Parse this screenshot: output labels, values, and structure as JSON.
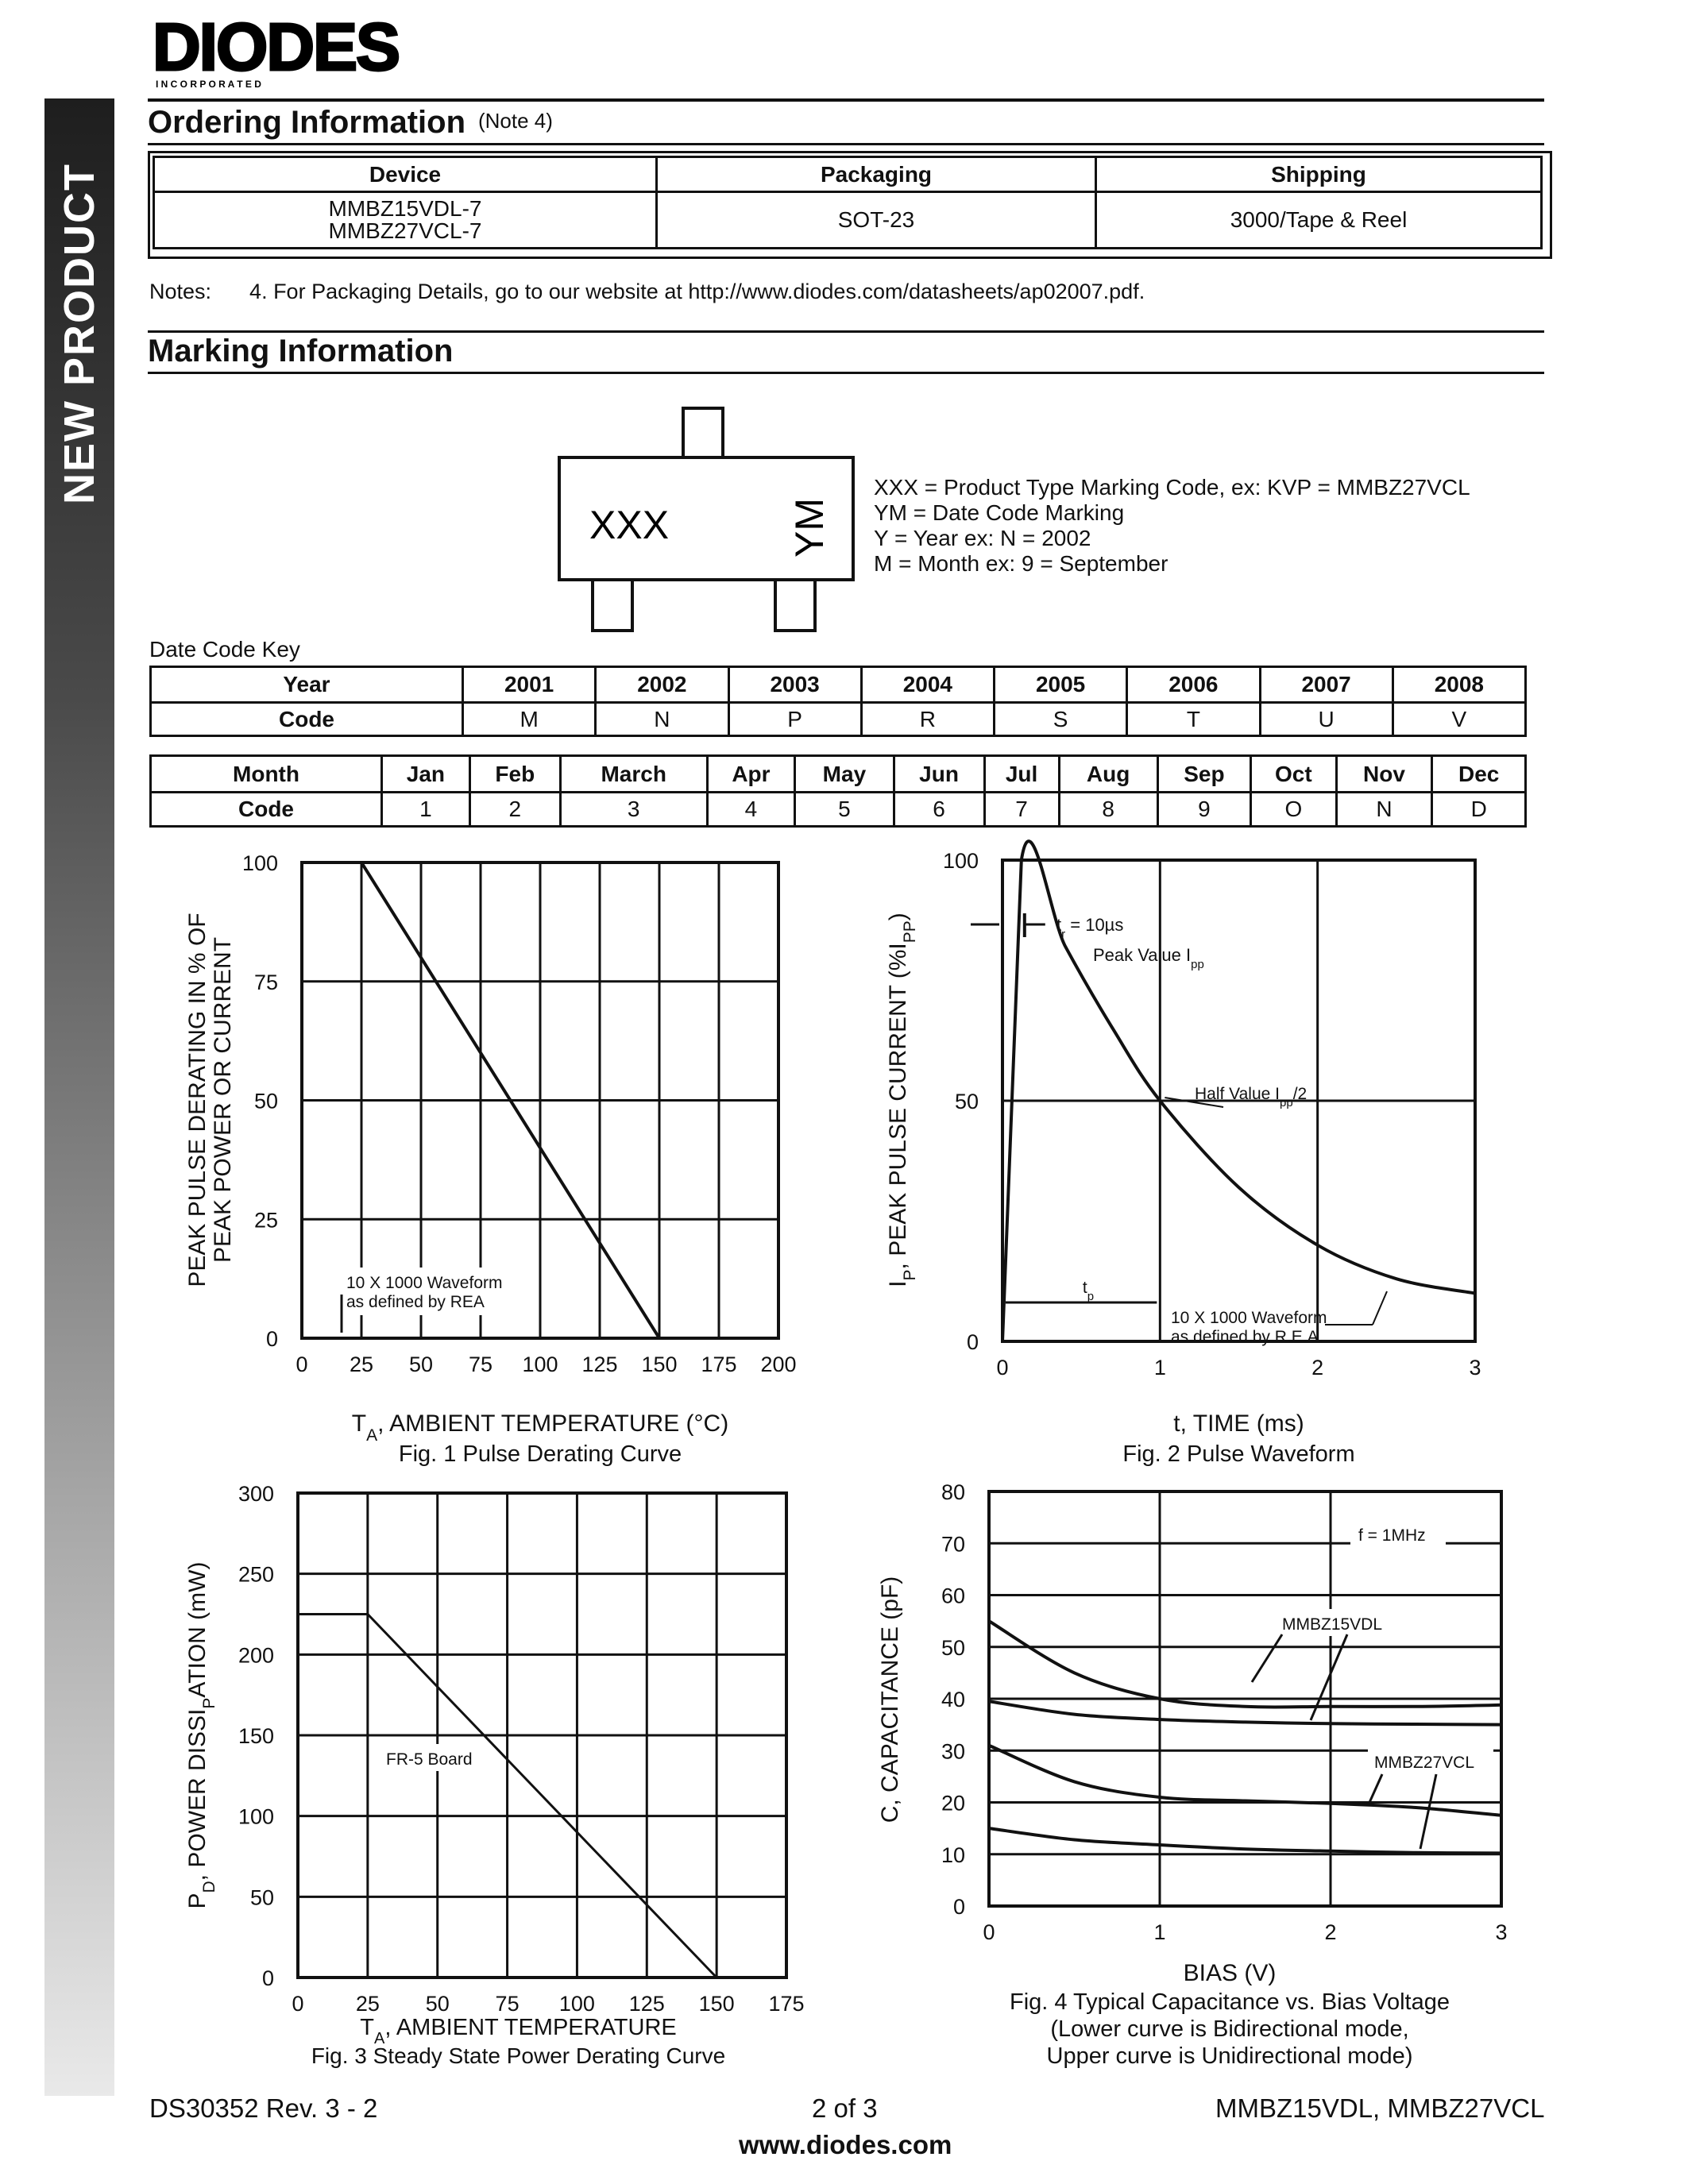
{
  "header": {
    "logo_text": "DIODES",
    "logo_subtext": "I N C O R P O R A T E D",
    "side_banner": "NEW PRODUCT"
  },
  "ordering": {
    "title": "Ordering Information",
    "note_ref": "(Note 4)",
    "columns": [
      "Device",
      "Packaging",
      "Shipping"
    ],
    "devices": [
      "MMBZ15VDL-7",
      "MMBZ27VCL-7"
    ],
    "packaging": "SOT-23",
    "shipping": "3000/Tape & Reel",
    "notes_label": "Notes:",
    "note_4": "4. For Packaging Details, go to our website at http://www.diodes.com/datasheets/ap02007.pdf."
  },
  "marking": {
    "title": "Marking Information",
    "package_code": "XXX",
    "package_date": "YM",
    "legend": [
      "XXX = Product Type Marking Code, ex: KVP = MMBZ27VCL",
      "YM = Date Code Marking",
      "Y = Year ex: N = 2002",
      "M = Month ex: 9 = September"
    ],
    "date_code_key": "Date Code Key",
    "year_table": {
      "row_labels": [
        "Year",
        "Code"
      ],
      "years": [
        "2001",
        "2002",
        "2003",
        "2004",
        "2005",
        "2006",
        "2007",
        "2008"
      ],
      "codes": [
        "M",
        "N",
        "P",
        "R",
        "S",
        "T",
        "U",
        "V"
      ]
    },
    "month_table": {
      "row_labels": [
        "Month",
        "Code"
      ],
      "months": [
        "Jan",
        "Feb",
        "March",
        "Apr",
        "May",
        "Jun",
        "Jul",
        "Aug",
        "Sep",
        "Oct",
        "Nov",
        "Dec"
      ],
      "codes": [
        "1",
        "2",
        "3",
        "4",
        "5",
        "6",
        "7",
        "8",
        "9",
        "O",
        "N",
        "D"
      ]
    }
  },
  "chart_data": [
    {
      "type": "line",
      "title": "Fig. 1  Pulse Derating Curve",
      "xlabel": "TA, AMBIENT TEMPERATURE (°C)",
      "ylabel": [
        "PEAK PULSE DERATING IN % OF",
        "PEAK POWER OR CURRENT"
      ],
      "xlim": [
        0,
        200
      ],
      "ylim": [
        0,
        100
      ],
      "xticks": [
        0,
        25,
        50,
        75,
        100,
        125,
        150,
        175,
        200
      ],
      "yticks": [
        0,
        25,
        50,
        75,
        100
      ],
      "grid": true,
      "annotations": [
        "10 X 1000 Waveform",
        "as defined by REA"
      ],
      "series": [
        {
          "x": [
            0,
            25,
            150
          ],
          "y": [
            100,
            100,
            0
          ]
        }
      ]
    },
    {
      "type": "line",
      "title": "Fig. 2  Pulse Waveform",
      "xlabel": "t, TIME (ms)",
      "ylabel": "IP, PEAK PULSE CURRENT (%IPP)",
      "xlim": [
        0,
        3
      ],
      "ylim": [
        0,
        100
      ],
      "xticks": [
        0,
        1,
        2,
        3
      ],
      "yticks": [
        0,
        50,
        100
      ],
      "grid": true,
      "annotations": [
        "tr = 10µs",
        "Peak Value Ipp",
        "Half Value Ipp/2",
        "tp",
        "10 X 1000 Waveform",
        "as defined by R.E.A."
      ],
      "series": [
        {
          "x": [
            0,
            0.12,
            0.4,
            0.7,
            1.0,
            1.5,
            2.0,
            2.5,
            3.0
          ],
          "y": [
            0,
            100,
            82,
            65,
            50,
            32,
            20,
            13,
            10
          ]
        }
      ]
    },
    {
      "type": "line",
      "title": "Fig. 3  Steady State Power Derating Curve",
      "xlabel": "TA, AMBIENT TEMPERATURE",
      "ylabel": "PD, POWER DISSIPATION (mW)",
      "xlim": [
        0,
        175
      ],
      "ylim": [
        0,
        300
      ],
      "xticks": [
        0,
        25,
        50,
        75,
        100,
        125,
        150,
        175
      ],
      "yticks": [
        0,
        50,
        100,
        150,
        200,
        250,
        300
      ],
      "grid": true,
      "annotations": [
        "FR-5 Board"
      ],
      "series": [
        {
          "x": [
            0,
            25,
            150
          ],
          "y": [
            225,
            225,
            0
          ]
        }
      ]
    },
    {
      "type": "line",
      "title": "Fig. 4  Typical Capacitance vs. Bias Voltage",
      "subtitle": [
        "(Lower curve is Bidirectional mode,",
        "Upper curve is Unidirectional mode)"
      ],
      "xlabel": "BIAS (V)",
      "ylabel": "C, CAPACITANCE (pF)",
      "xlim": [
        0,
        3
      ],
      "ylim": [
        0,
        80
      ],
      "xticks": [
        0,
        1,
        2,
        3
      ],
      "yticks": [
        0,
        10,
        20,
        30,
        40,
        50,
        60,
        70,
        80
      ],
      "grid": true,
      "annotations": [
        "f = 1MHz",
        "MMBZ15VDL",
        "MMBZ27VCL"
      ],
      "series": [
        {
          "x": [
            0,
            0.5,
            1,
            1.5,
            2,
            2.5,
            3
          ],
          "y": [
            55,
            45,
            40,
            38.5,
            38.5,
            38.5,
            38.8
          ]
        },
        {
          "x": [
            0,
            0.5,
            1,
            1.5,
            2,
            2.5,
            3
          ],
          "y": [
            39.5,
            37,
            36,
            35.5,
            35.2,
            35.1,
            35
          ]
        },
        {
          "x": [
            0,
            0.5,
            1,
            1.5,
            2,
            2.5,
            3
          ],
          "y": [
            31,
            24,
            21,
            20.3,
            19.8,
            19,
            17.5
          ]
        },
        {
          "x": [
            0,
            0.5,
            1,
            1.5,
            2,
            2.5,
            3
          ],
          "y": [
            15,
            12.8,
            11.8,
            11,
            10.6,
            10.3,
            10.2
          ]
        }
      ]
    }
  ],
  "footer": {
    "doc_id": "DS30352 Rev. 3 - 2",
    "page": "2 of 3",
    "parts": "MMBZ15VDL, MMBZ27VCL",
    "url": "www.diodes.com"
  }
}
